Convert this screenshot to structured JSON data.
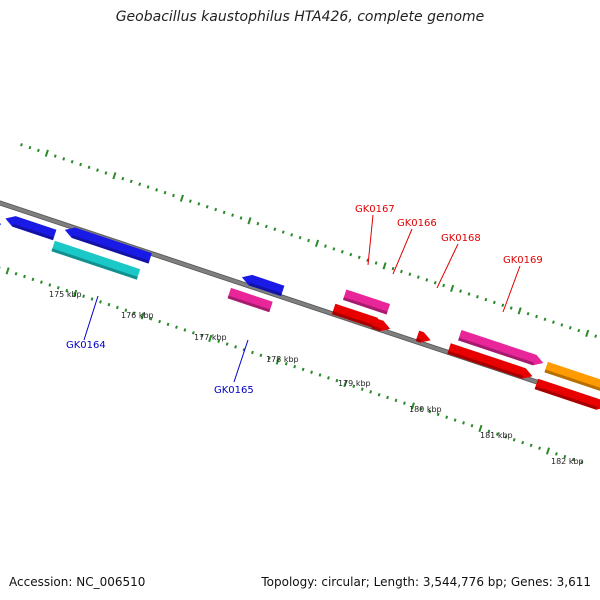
{
  "title": "Geobacillus kaustophilus HTA426, complete genome",
  "footer": {
    "accession": "Accession: NC_006510",
    "summary": "Topology: circular; Length: 3,544,776 bp; Genes: 3,611"
  },
  "colors": {
    "backbone": "#808080",
    "tick": "#2a8a2a",
    "blue": "#1a1ae6",
    "cyan": "#1ac8c8",
    "pink": "#e8269a",
    "red": "#e80000",
    "orange": "#ff9a00",
    "label_blue": "#0000c8",
    "label_red": "#e00000"
  },
  "ticks": [
    "175 kbp",
    "176 kbp",
    "177 kbp",
    "178 kbp",
    "179 kbp",
    "180 kbp",
    "181 kbp",
    "182 kbp"
  ],
  "gene_labels": [
    {
      "name": "GK0164",
      "color": "label_blue"
    },
    {
      "name": "GK0165",
      "color": "label_blue"
    },
    {
      "name": "GK0167",
      "color": "label_red"
    },
    {
      "name": "GK0166",
      "color": "label_red"
    },
    {
      "name": "GK0168",
      "color": "label_red"
    },
    {
      "name": "GK0169",
      "color": "label_red"
    }
  ]
}
